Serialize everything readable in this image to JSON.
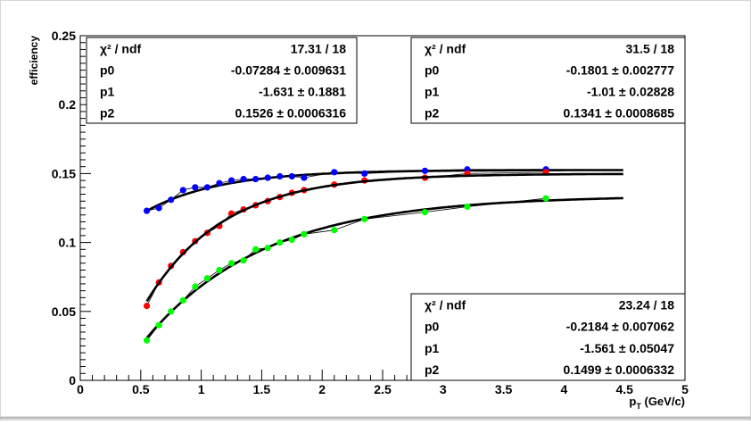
{
  "chart_data": {
    "type": "scatter",
    "ylabel": "efficiency",
    "xlabel_main": "p",
    "xlabel_sub": "T",
    "xlabel_unit": "(GeV/c)",
    "xlim": [
      0,
      5
    ],
    "ylim": [
      0,
      0.25
    ],
    "x_ticks": [
      "0",
      "0.5",
      "1",
      "1.5",
      "2",
      "2.5",
      "3",
      "3.5",
      "4",
      "4.5",
      "5"
    ],
    "y_ticks": [
      "0",
      "0.05",
      "0.1",
      "0.15",
      "0.2",
      "0.25"
    ],
    "grid": false,
    "series": [
      {
        "color": "#0000ff",
        "x": [
          0.55,
          0.65,
          0.75,
          0.85,
          0.95,
          1.05,
          1.15,
          1.25,
          1.35,
          1.45,
          1.55,
          1.65,
          1.75,
          1.85,
          2.1,
          2.35,
          2.85,
          3.2,
          3.85
        ],
        "y": [
          0.123,
          0.125,
          0.131,
          0.138,
          0.14,
          0.14,
          0.143,
          0.145,
          0.146,
          0.146,
          0.147,
          0.148,
          0.148,
          0.147,
          0.151,
          0.15,
          0.152,
          0.153,
          0.153
        ],
        "fit": {
          "p0": -0.07284,
          "p1": -1.631,
          "p2": 0.1526
        }
      },
      {
        "color": "#ff0000",
        "x": [
          0.55,
          0.65,
          0.75,
          0.85,
          0.95,
          1.05,
          1.15,
          1.25,
          1.35,
          1.45,
          1.55,
          1.65,
          1.75,
          1.85,
          2.1,
          2.35,
          2.85,
          3.2,
          3.85
        ],
        "y": [
          0.054,
          0.071,
          0.083,
          0.093,
          0.101,
          0.107,
          0.112,
          0.121,
          0.124,
          0.127,
          0.13,
          0.133,
          0.136,
          0.138,
          0.142,
          0.145,
          0.147,
          0.15,
          0.151
        ],
        "fit": {
          "p0": -0.1801,
          "p1": -1.01,
          "p2": 0.1341
        }
      },
      {
        "color": "#00ff00",
        "x": [
          0.55,
          0.65,
          0.75,
          0.85,
          0.95,
          1.05,
          1.15,
          1.25,
          1.35,
          1.45,
          1.55,
          1.65,
          1.75,
          1.85,
          2.1,
          2.35,
          2.85,
          3.2,
          3.85
        ],
        "y": [
          0.029,
          0.04,
          0.05,
          0.058,
          0.068,
          0.074,
          0.08,
          0.085,
          0.087,
          0.095,
          0.096,
          0.1,
          0.102,
          0.106,
          0.109,
          0.117,
          0.122,
          0.126,
          0.132
        ],
        "fit": {
          "p0": -0.2184,
          "p1": -1.561,
          "p2": 0.1499
        }
      }
    ],
    "stat_boxes": [
      {
        "position": "top-left",
        "rows": [
          {
            "label": "χ² / ndf",
            "value": "17.31 / 18"
          },
          {
            "label": "p0",
            "value": "-0.07284 ± 0.009631"
          },
          {
            "label": "p1",
            "value": "-1.631 ± 0.1881"
          },
          {
            "label": "p2",
            "value": "0.1526 ± 0.0006316"
          }
        ]
      },
      {
        "position": "top-right",
        "rows": [
          {
            "label": "χ² / ndf",
            "value": "31.5 / 18"
          },
          {
            "label": "p0",
            "value": "-0.1801 ± 0.002777"
          },
          {
            "label": "p1",
            "value": "-1.01 ± 0.02828"
          },
          {
            "label": "p2",
            "value": "0.1341 ± 0.0008685"
          }
        ]
      },
      {
        "position": "bottom-right",
        "rows": [
          {
            "label": "χ² / ndf",
            "value": "23.24 / 18"
          },
          {
            "label": "p0",
            "value": "-0.2184 ± 0.007062"
          },
          {
            "label": "p1",
            "value": "-1.561 ± 0.05047"
          },
          {
            "label": "p2",
            "value": "0.1499 ± 0.0006332"
          }
        ]
      }
    ]
  }
}
